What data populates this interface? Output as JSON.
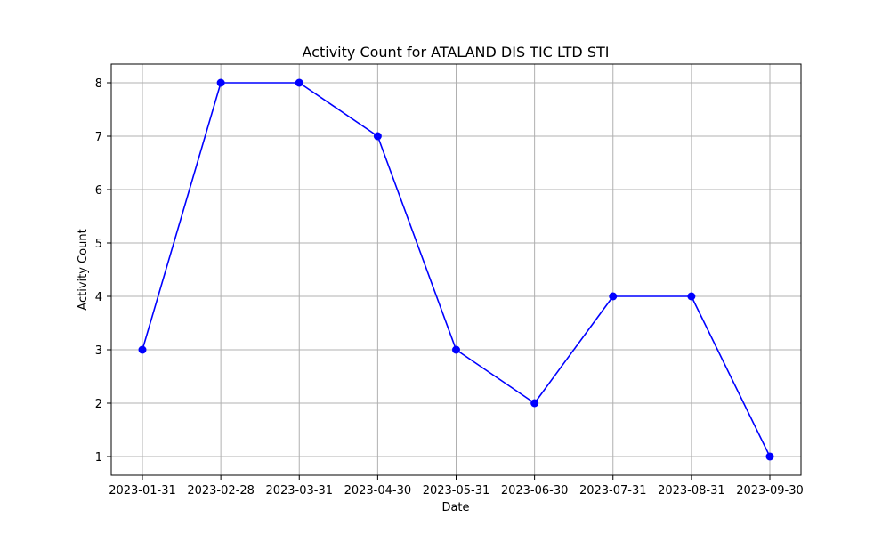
{
  "chart_data": {
    "type": "line",
    "title": "Activity Count for ATALAND DIS TIC LTD STI",
    "xlabel": "Date",
    "ylabel": "Activity Count",
    "categories": [
      "2023-01-31",
      "2023-02-28",
      "2023-03-31",
      "2023-04-30",
      "2023-05-31",
      "2023-06-30",
      "2023-07-31",
      "2023-08-31",
      "2023-09-30"
    ],
    "series": [
      {
        "values": [
          3,
          8,
          8,
          7,
          3,
          2,
          4,
          4,
          1
        ],
        "color": "#0000ff",
        "marker": "circle"
      }
    ],
    "yticks": [
      1,
      2,
      3,
      4,
      5,
      6,
      7,
      8
    ],
    "ylim": [
      0.65,
      8.35
    ],
    "grid": true,
    "gridColor": "#b0b0b0",
    "legend": "none"
  }
}
